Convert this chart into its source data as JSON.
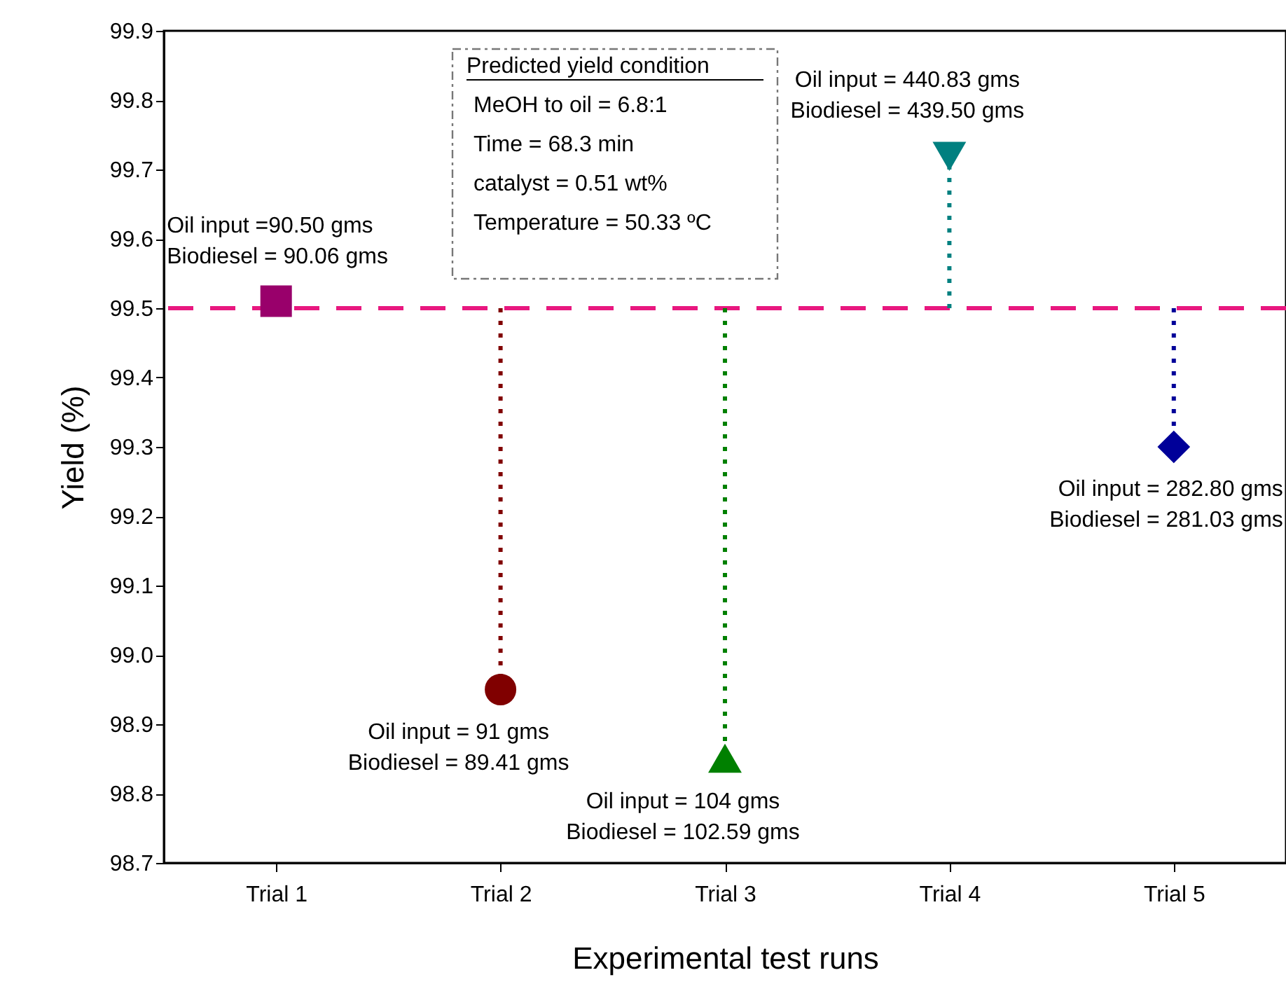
{
  "chart_data": {
    "type": "lollipop",
    "xlabel": "Experimental test runs",
    "ylabel": "Yield (%)",
    "categories": [
      "Trial 1",
      "Trial 2",
      "Trial 3",
      "Trial 4",
      "Trial 5"
    ],
    "series": [
      {
        "color": "#99006b",
        "marker": "square",
        "x": [
          "Trial 1"
        ],
        "values": [
          99.51
        ]
      },
      {
        "color": "#800000",
        "marker": "circle",
        "x": [
          "Trial 2"
        ],
        "values": [
          98.95
        ]
      },
      {
        "color": "#008000",
        "marker": "triangle",
        "x": [
          "Trial 3"
        ],
        "values": [
          98.85
        ]
      },
      {
        "color": "#008080",
        "marker": "triangle-down",
        "x": [
          "Trial 4"
        ],
        "values": [
          99.72
        ]
      },
      {
        "color": "#000099",
        "marker": "diamond",
        "x": [
          "Trial 5"
        ],
        "values": [
          99.3
        ]
      }
    ],
    "ylim": [
      98.7,
      99.9
    ],
    "yticks": [
      98.7,
      98.8,
      98.9,
      {
        "value": 99,
        "label": "99.0"
      },
      99.1,
      99.2,
      99.3,
      99.4,
      99.5,
      99.6,
      99.7,
      99.8,
      99.9
    ],
    "ref_lines": [
      {
        "axis": "y",
        "value": 99.5,
        "color": "#e8177f",
        "line_style": "dashed"
      }
    ],
    "line_style": "dotted",
    "grid": false,
    "annotations": [
      "Predicted yield condition\nMeOH to oil = 6.8:1\nTime = 68.3 min\ncatalyst = 0.51 wt%\nTemperature = 50.33 ºC",
      {
        "text": "Oil input =90.50 gms\nBiodiesel = 90.06 gms",
        "x": "Trial 1",
        "y": 99.51
      },
      {
        "text": "Oil input = 91 gms\nBiodiesel = 89.41 gms",
        "x": "Trial 2",
        "y": 98.95
      },
      {
        "text": "Oil input = 104 gms\nBiodiesel = 102.59 gms",
        "x": "Trial 3",
        "y": 98.85
      },
      {
        "text": "Oil input = 440.83 gms\nBiodiesel = 439.50 gms",
        "x": "Trial 4",
        "y": 99.72
      },
      {
        "text": "Oil input = 282.80 gms\nBiodiesel = 281.03 gms",
        "x": "Trial 5",
        "y": 99.3
      }
    ]
  }
}
